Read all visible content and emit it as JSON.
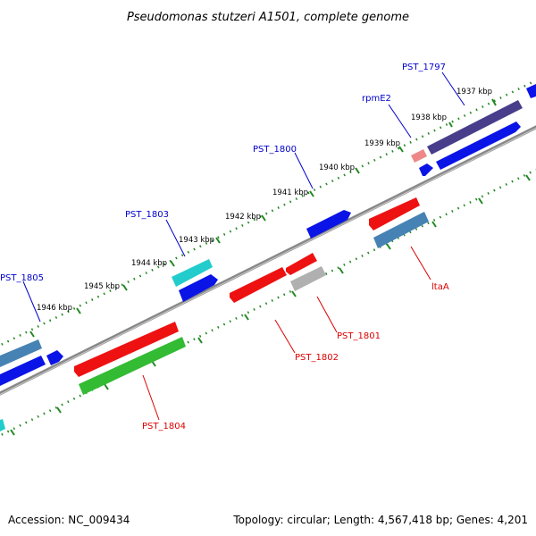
{
  "title": "Pseudomonas stutzeri A1501, complete genome",
  "footer": {
    "accession": "Accession: NC_009434",
    "topology": "Topology: circular; Length: 4,567,418 bp; Genes: 4,201"
  },
  "colors": {
    "forward_label": "#0000cc",
    "reverse_label": "#dd0000",
    "backbone": "#808080",
    "tick": "#228822",
    "blue": "#0a14e6",
    "red": "#ee1111",
    "green": "#33bb33",
    "cyan": "#22cccc",
    "steelblue": "#4682b4",
    "darkslate": "#483d8b",
    "pink": "#ee8888",
    "gray": "#b0b0b0"
  },
  "ticks": [
    "1937 kbp",
    "1938 kbp",
    "1939 kbp",
    "1940 kbp",
    "1941 kbp",
    "1942 kbp",
    "1943 kbp",
    "1944 kbp",
    "1945 kbp",
    "1946 kbp"
  ],
  "labels": {
    "forward": [
      "PST_1797",
      "rpmE2",
      "PST_1800",
      "PST_1803",
      "PST_1805"
    ],
    "reverse": [
      "ltaA",
      "PST_1801",
      "PST_1802",
      "PST_1804"
    ]
  }
}
